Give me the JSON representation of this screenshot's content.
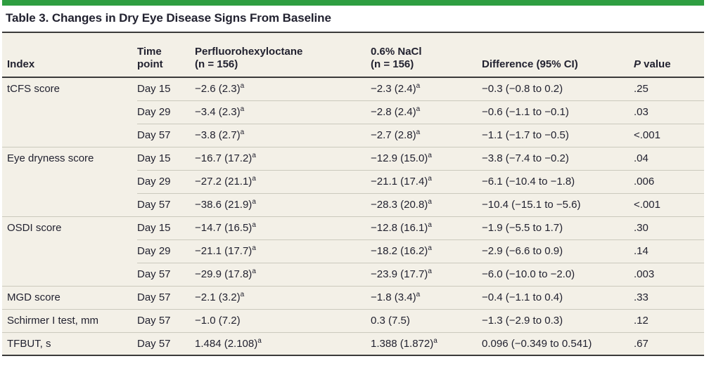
{
  "title": "Table 3. Changes in Dry Eye Disease Signs From Baseline",
  "colors": {
    "accent_green": "#2f9e41",
    "table_background": "#f3f0e7",
    "text": "#222230",
    "rule_dark": "#3a3a3a",
    "rule_light": "#cbc9bd"
  },
  "header": {
    "index": "Index",
    "time_line1": "Time",
    "time_line2": "point",
    "drug_line1": "Perfluorohexyloctane",
    "drug_line2": "(n = 156)",
    "nacl_line1": "0.6% NaCl",
    "nacl_line2": "(n = 156)",
    "difference": "Difference (95% CI)",
    "p_italic": "P",
    "p_rest": " value"
  },
  "rows": [
    {
      "index": "tCFS score",
      "time": "Day 15",
      "drug": "−2.6 (2.3)",
      "drug_sup": "a",
      "nacl": "−2.3 (2.4)",
      "nacl_sup": "a",
      "diff": "−0.3 (−0.8 to 0.2)",
      "p": ".25"
    },
    {
      "index": "",
      "time": "Day 29",
      "drug": "−3.4 (2.3)",
      "drug_sup": "a",
      "nacl": "−2.8 (2.4)",
      "nacl_sup": "a",
      "diff": "−0.6 (−1.1 to −0.1)",
      "p": ".03"
    },
    {
      "index": "",
      "time": "Day 57",
      "drug": "−3.8 (2.7)",
      "drug_sup": "a",
      "nacl": "−2.7 (2.8)",
      "nacl_sup": "a",
      "diff": "−1.1 (−1.7 to −0.5)",
      "p": "<.001"
    },
    {
      "index": "Eye dryness score",
      "time": "Day 15",
      "drug": "−16.7 (17.2)",
      "drug_sup": "a",
      "nacl": "−12.9 (15.0)",
      "nacl_sup": "a",
      "diff": "−3.8 (−7.4 to −0.2)",
      "p": ".04"
    },
    {
      "index": "",
      "time": "Day 29",
      "drug": "−27.2 (21.1)",
      "drug_sup": "a",
      "nacl": "−21.1 (17.4)",
      "nacl_sup": "a",
      "diff": "−6.1 (−10.4 to −1.8)",
      "p": ".006"
    },
    {
      "index": "",
      "time": "Day 57",
      "drug": "−38.6 (21.9)",
      "drug_sup": "a",
      "nacl": "−28.3 (20.8)",
      "nacl_sup": "a",
      "diff": "−10.4 (−15.1 to −5.6)",
      "p": "<.001"
    },
    {
      "index": "OSDI score",
      "time": "Day 15",
      "drug": "−14.7 (16.5)",
      "drug_sup": "a",
      "nacl": "−12.8 (16.1)",
      "nacl_sup": "a",
      "diff": "−1.9 (−5.5 to 1.7)",
      "p": ".30"
    },
    {
      "index": "",
      "time": "Day 29",
      "drug": "−21.1 (17.7)",
      "drug_sup": "a",
      "nacl": "−18.2 (16.2)",
      "nacl_sup": "a",
      "diff": "−2.9 (−6.6 to 0.9)",
      "p": ".14"
    },
    {
      "index": "",
      "time": "Day 57",
      "drug": "−29.9 (17.8)",
      "drug_sup": "a",
      "nacl": "−23.9 (17.7)",
      "nacl_sup": "a",
      "diff": "−6.0 (−10.0 to −2.0)",
      "p": ".003"
    },
    {
      "index": "MGD score",
      "time": "Day 57",
      "drug": "−2.1 (3.2)",
      "drug_sup": "a",
      "nacl": "−1.8 (3.4)",
      "nacl_sup": "a",
      "diff": "−0.4 (−1.1 to 0.4)",
      "p": ".33"
    },
    {
      "index": "Schirmer I test, mm",
      "time": "Day 57",
      "drug": "−1.0 (7.2)",
      "drug_sup": "",
      "nacl": "0.3 (7.5)",
      "nacl_sup": "",
      "diff": "−1.3 (−2.9 to 0.3)",
      "p": ".12"
    },
    {
      "index": "TFBUT, s",
      "time": "Day 57",
      "drug": "1.484 (2.108)",
      "drug_sup": "a",
      "nacl": "1.388 (1.872)",
      "nacl_sup": "a",
      "diff": "0.096 (−0.349 to 0.541)",
      "p": ".67"
    }
  ]
}
